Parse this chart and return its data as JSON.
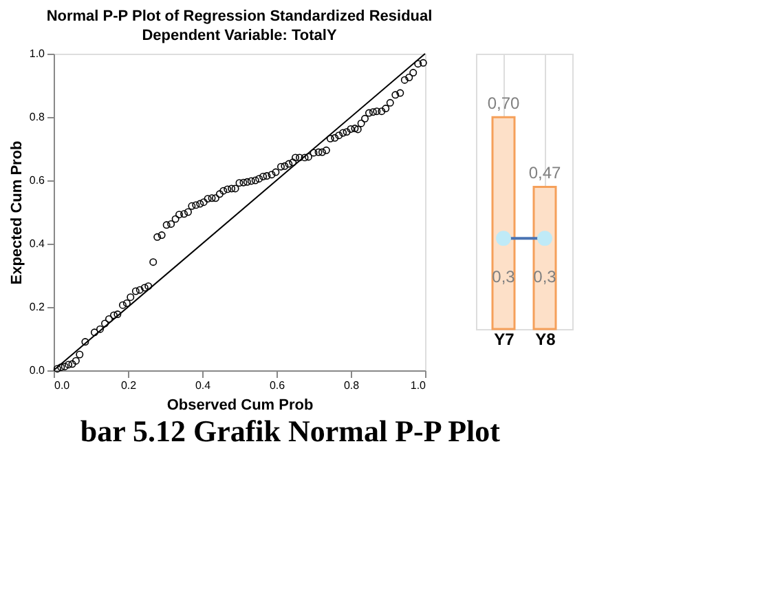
{
  "chart_data": [
    {
      "type": "scatter",
      "title": "Normal P-P Plot of Regression Standardized Residual",
      "subtitle": "Dependent Variable: TotalY",
      "xlabel": "Observed Cum Prob",
      "ylabel": "Expected Cum Prob",
      "xlim": [
        0,
        1
      ],
      "ylim": [
        0,
        1
      ],
      "xticks": [
        {
          "value": 0,
          "label": "0.0"
        },
        0.2,
        0.4,
        0.6,
        0.8,
        {
          "value": 1,
          "label": "1.0"
        }
      ],
      "yticks": [
        {
          "value": 0,
          "label": "0.0"
        },
        0.2,
        0.4,
        0.6,
        0.8,
        {
          "value": 1,
          "label": "1.0"
        }
      ],
      "grid": false,
      "marker": "circle",
      "series": [
        {
          "type": "scatter",
          "color": "#000000",
          "x": [
            0.01,
            0.02,
            0.03,
            0.04,
            0.05,
            0.06,
            0.07,
            0.085,
            0.11,
            0.125,
            0.138,
            0.149,
            0.162,
            0.172,
            0.186,
            0.197,
            0.207,
            0.221,
            0.232,
            0.245,
            0.255,
            0.268,
            0.279,
            0.291,
            0.304,
            0.316,
            0.328,
            0.338,
            0.351,
            0.362,
            0.372,
            0.383,
            0.394,
            0.404,
            0.415,
            0.426,
            0.436,
            0.447,
            0.457,
            0.468,
            0.479,
            0.489,
            0.5,
            0.511,
            0.521,
            0.532,
            0.543,
            0.553,
            0.564,
            0.574,
            0.587,
            0.598,
            0.612,
            0.622,
            0.633,
            0.644,
            0.651,
            0.662,
            0.676,
            0.686,
            0.7,
            0.713,
            0.723,
            0.734,
            0.745,
            0.757,
            0.768,
            0.779,
            0.789,
            0.8,
            0.811,
            0.819,
            0.828,
            0.838,
            0.849,
            0.86,
            0.87,
            0.883,
            0.894,
            0.906,
            0.92,
            0.933,
            0.945,
            0.957,
            0.968,
            0.981,
            0.995
          ],
          "values": [
            0.005,
            0.01,
            0.012,
            0.018,
            0.02,
            0.03,
            0.05,
            0.09,
            0.12,
            0.13,
            0.148,
            0.162,
            0.174,
            0.177,
            0.206,
            0.212,
            0.231,
            0.25,
            0.254,
            0.261,
            0.266,
            0.342,
            0.421,
            0.427,
            0.459,
            0.462,
            0.478,
            0.492,
            0.494,
            0.5,
            0.519,
            0.522,
            0.526,
            0.531,
            0.542,
            0.544,
            0.544,
            0.557,
            0.567,
            0.572,
            0.574,
            0.574,
            0.592,
            0.593,
            0.595,
            0.598,
            0.6,
            0.605,
            0.612,
            0.614,
            0.618,
            0.626,
            0.643,
            0.645,
            0.652,
            0.657,
            0.672,
            0.672,
            0.672,
            0.674,
            0.687,
            0.689,
            0.689,
            0.695,
            0.732,
            0.734,
            0.742,
            0.75,
            0.753,
            0.762,
            0.764,
            0.761,
            0.78,
            0.795,
            0.813,
            0.816,
            0.818,
            0.818,
            0.827,
            0.845,
            0.87,
            0.876,
            0.917,
            0.925,
            0.94,
            0.968,
            0.971
          ]
        },
        {
          "type": "line",
          "color": "#000000",
          "marker": "none",
          "line_style": "solid",
          "x": [
            0,
            1
          ],
          "values": [
            0,
            1
          ]
        }
      ]
    },
    {
      "type": "bar",
      "categories": [
        "Y7",
        "Y8"
      ],
      "grid": "x",
      "series": [
        {
          "type": "bar",
          "color": "#f5a05a",
          "values": [
            0.7,
            0.47
          ],
          "value_labels": [
            "0,70",
            "0,47"
          ]
        },
        {
          "type": "line",
          "color": "#4a74b4",
          "marker": "circle",
          "values": [
            0.3,
            0.3
          ],
          "value_labels": [
            "0,3",
            "0,3"
          ]
        }
      ],
      "annotations": [
        "bar 5.12 Grafik Normal P-P Plot"
      ]
    }
  ]
}
